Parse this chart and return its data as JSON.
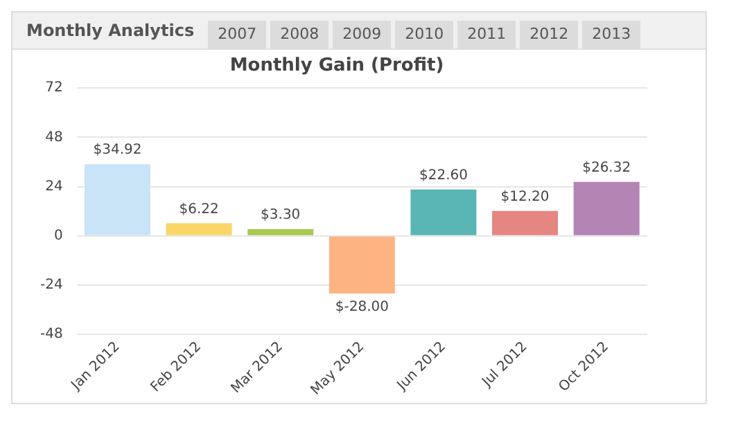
{
  "chart_data": {
    "type": "bar",
    "title": "Monthly Gain (Profit)",
    "annotations": [
      "Monthly Analytics",
      "2007",
      "2008",
      "2009",
      "2010",
      "2011",
      "2012",
      "2013"
    ],
    "categories": [
      "Jan 2012",
      "Feb 2012",
      "Mar 2012",
      "May 2012",
      "Jun 2012",
      "Jul 2012",
      "Oct 2012"
    ],
    "values": [
      34.92,
      6.22,
      3.3,
      -28,
      22.6,
      12.2,
      26.32
    ],
    "colors": [
      "#c9e3f7",
      "#f9d667",
      "#a9c84f",
      "#fdb482",
      "#5ab6b4",
      "#e58683",
      "#b384b4"
    ],
    "value_labels": [
      "$34.92",
      "$6.22",
      "$3.30",
      "$-28.00",
      "$22.60",
      "$12.20",
      "$26.32"
    ],
    "ylim": [
      -48,
      72
    ],
    "yticks": [
      -48,
      -24,
      0,
      24,
      48,
      72
    ],
    "grid": "y",
    "legend": false
  }
}
